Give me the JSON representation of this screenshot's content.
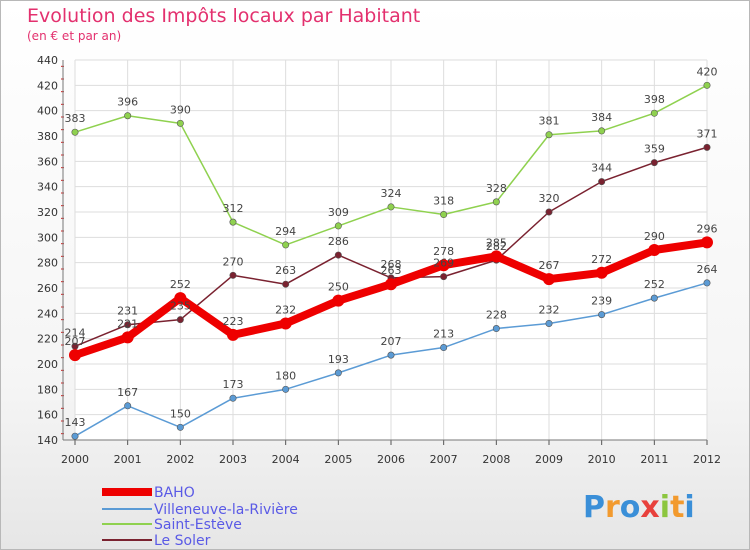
{
  "title": "Evolution des Impôts locaux par Habitant",
  "subtitle": "(en € et par an)",
  "logo_text": "Proxiti",
  "chart_data": {
    "type": "line",
    "title": "Evolution des Impôts locaux par Habitant",
    "subtitle": "(en € et par an)",
    "xlabel": "",
    "ylabel": "",
    "x": [
      "2000",
      "2001",
      "2002",
      "2003",
      "2004",
      "2005",
      "2006",
      "2007",
      "2008",
      "2009",
      "2010",
      "2011",
      "2012"
    ],
    "ylim": [
      140,
      440
    ],
    "yticks": [
      140,
      160,
      180,
      200,
      220,
      240,
      260,
      280,
      300,
      320,
      340,
      360,
      380,
      400,
      420,
      440
    ],
    "grid": true,
    "legend_position": "bottom-left",
    "series": [
      {
        "name": "BAHO",
        "color": "#ee0000",
        "values": [
          207,
          221,
          252,
          223,
          232,
          250,
          263,
          278,
          285,
          267,
          272,
          290,
          296
        ]
      },
      {
        "name": "Villeneuve-la-Rivière",
        "color": "#5b9bd5",
        "values": [
          143,
          167,
          150,
          173,
          180,
          193,
          207,
          213,
          228,
          232,
          239,
          252,
          264
        ]
      },
      {
        "name": "Saint-Estève",
        "color": "#8fd14f",
        "values": [
          383,
          396,
          390,
          312,
          294,
          309,
          324,
          318,
          328,
          381,
          384,
          398,
          420
        ]
      },
      {
        "name": "Le Soler",
        "color": "#7a2230",
        "values": [
          214,
          231,
          235,
          270,
          263,
          286,
          268,
          269,
          282,
          320,
          344,
          359,
          371
        ]
      }
    ]
  }
}
